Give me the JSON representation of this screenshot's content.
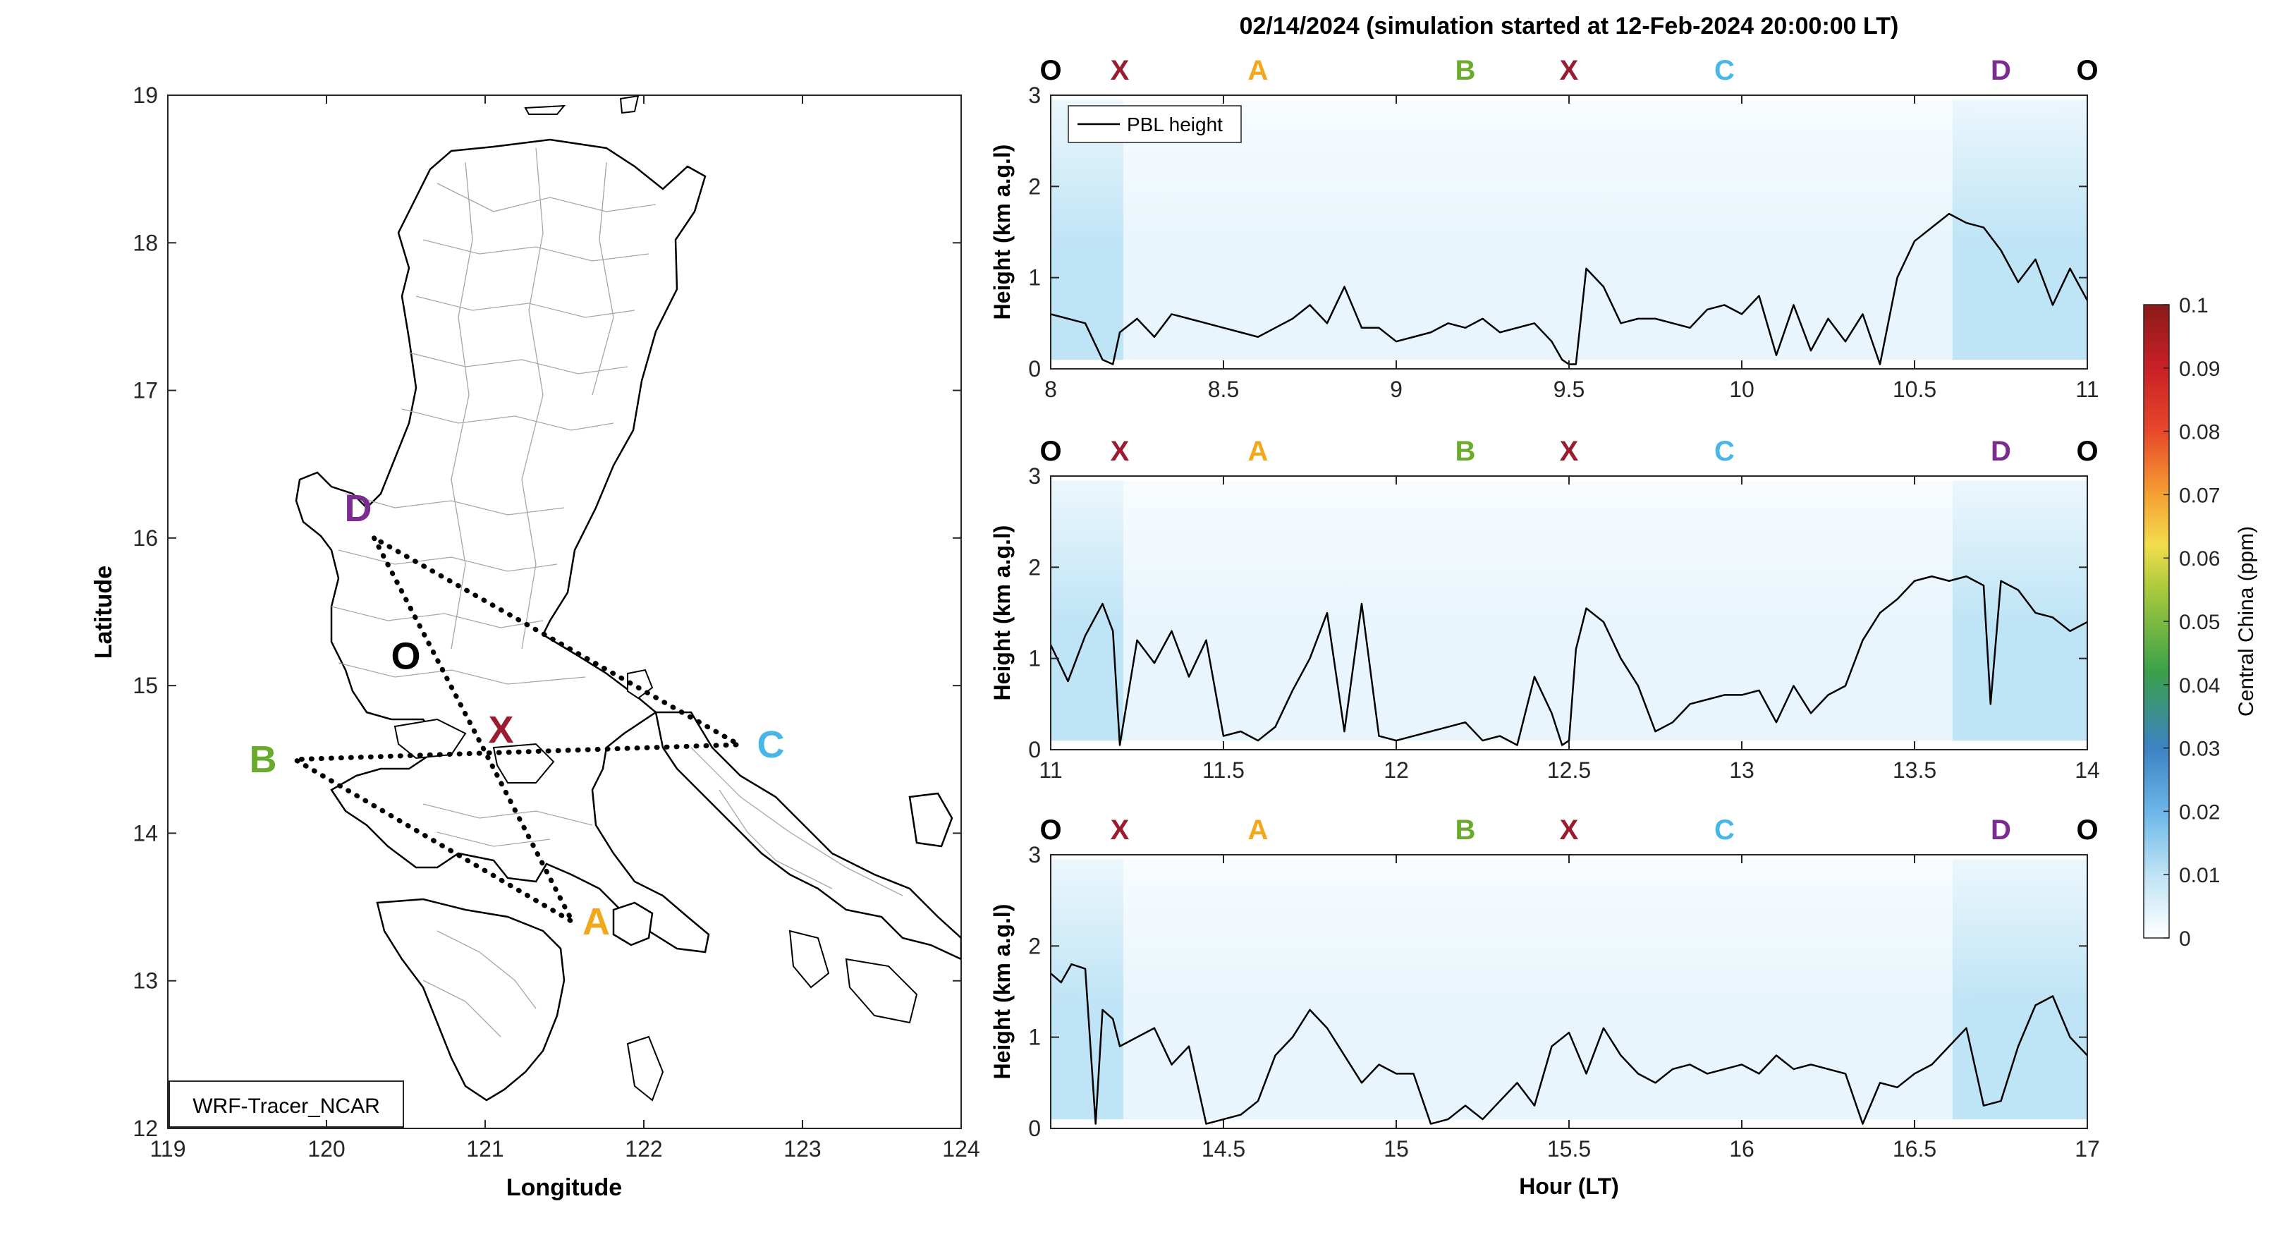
{
  "title": "02/14/2024 (simulation started at 12-Feb-2024 20:00:00 LT)",
  "colors": {
    "O": "#000000",
    "X": "#9b1b30",
    "A": "#f0a81c",
    "B": "#6aaa2c",
    "C": "#48b7e8",
    "D": "#7a2d8e",
    "pbl_line": "#000000",
    "tracer_light": "#e8f5fc",
    "tracer_mid": "#bfe4f6"
  },
  "chart_data": [
    {
      "type": "map",
      "xlabel": "Longitude",
      "ylabel": "Latitude",
      "xlim": [
        119,
        124
      ],
      "ylim": [
        12,
        19
      ],
      "xticks": [
        "119",
        "120",
        "121",
        "122",
        "123",
        "124"
      ],
      "yticks": [
        "12",
        "13",
        "14",
        "15",
        "16",
        "17",
        "18",
        "19"
      ],
      "label_box": "WRF-Tracer_NCAR",
      "points": [
        {
          "name": "D",
          "lon": 120.2,
          "lat": 16.2
        },
        {
          "name": "O",
          "lon": 120.5,
          "lat": 15.2
        },
        {
          "name": "X",
          "lon": 121.1,
          "lat": 14.7
        },
        {
          "name": "B",
          "lon": 119.6,
          "lat": 14.5
        },
        {
          "name": "C",
          "lon": 122.8,
          "lat": 14.6
        },
        {
          "name": "A",
          "lon": 121.7,
          "lat": 13.4
        }
      ],
      "route": [
        {
          "lon": 120.3,
          "lat": 16.0
        },
        {
          "lon": 121.0,
          "lat": 14.55
        },
        {
          "lon": 121.55,
          "lat": 13.4
        },
        {
          "lon": 119.8,
          "lat": 14.5
        },
        {
          "lon": 122.6,
          "lat": 14.6
        },
        {
          "lon": 120.3,
          "lat": 16.0
        }
      ]
    },
    {
      "type": "line",
      "ylabel": "Height (km a.g.l)",
      "xlim": [
        8,
        11
      ],
      "ylim": [
        0,
        3
      ],
      "xticks": [
        "8",
        "8.5",
        "9",
        "9.5",
        "10",
        "10.5",
        "11"
      ],
      "yticks": [
        "0",
        "1",
        "2",
        "3"
      ],
      "legend": "PBL height",
      "stops": [
        {
          "label": "O",
          "x": 8.0
        },
        {
          "label": "X",
          "x": 8.2
        },
        {
          "label": "A",
          "x": 8.6
        },
        {
          "label": "B",
          "x": 9.2
        },
        {
          "label": "X",
          "x": 9.5
        },
        {
          "label": "C",
          "x": 9.95
        },
        {
          "label": "D",
          "x": 10.75
        },
        {
          "label": "O",
          "x": 11.0
        }
      ],
      "series": [
        {
          "x": [
            8.0,
            8.05,
            8.1,
            8.15,
            8.18,
            8.2,
            8.25,
            8.3,
            8.35,
            8.4,
            8.45,
            8.5,
            8.55,
            8.6,
            8.65,
            8.7,
            8.75,
            8.8,
            8.85,
            8.9,
            8.95,
            9.0,
            9.05,
            9.1,
            9.15,
            9.2,
            9.25,
            9.3,
            9.35,
            9.4,
            9.45,
            9.48,
            9.5,
            9.52,
            9.55,
            9.6,
            9.65,
            9.7,
            9.75,
            9.8,
            9.85,
            9.9,
            9.95,
            10.0,
            10.05,
            10.1,
            10.15,
            10.2,
            10.25,
            10.3,
            10.35,
            10.4,
            10.45,
            10.5,
            10.55,
            10.6,
            10.65,
            10.7,
            10.75,
            10.8,
            10.85,
            10.9,
            10.95,
            11.0
          ],
          "y": [
            0.6,
            0.55,
            0.5,
            0.1,
            0.05,
            0.4,
            0.55,
            0.35,
            0.6,
            0.55,
            0.5,
            0.45,
            0.4,
            0.35,
            0.45,
            0.55,
            0.7,
            0.5,
            0.9,
            0.45,
            0.45,
            0.3,
            0.35,
            0.4,
            0.5,
            0.45,
            0.55,
            0.4,
            0.45,
            0.5,
            0.3,
            0.1,
            0.05,
            0.05,
            1.1,
            0.9,
            0.5,
            0.55,
            0.55,
            0.5,
            0.45,
            0.65,
            0.7,
            0.6,
            0.8,
            0.15,
            0.7,
            0.2,
            0.55,
            0.3,
            0.6,
            0.05,
            1.0,
            1.4,
            1.55,
            1.7,
            1.6,
            1.55,
            1.3,
            0.95,
            1.2,
            0.7,
            1.1,
            0.75
          ]
        }
      ]
    },
    {
      "type": "line",
      "ylabel": "Height (km a.g.l)",
      "xlim": [
        11,
        14
      ],
      "ylim": [
        0,
        3
      ],
      "xticks": [
        "11",
        "11.5",
        "12",
        "12.5",
        "13",
        "13.5",
        "14"
      ],
      "yticks": [
        "0",
        "1",
        "2",
        "3"
      ],
      "stops": [
        {
          "label": "O",
          "x": 11.0
        },
        {
          "label": "X",
          "x": 11.2
        },
        {
          "label": "A",
          "x": 11.6
        },
        {
          "label": "B",
          "x": 12.2
        },
        {
          "label": "X",
          "x": 12.5
        },
        {
          "label": "C",
          "x": 12.95
        },
        {
          "label": "D",
          "x": 13.75
        },
        {
          "label": "O",
          "x": 14.0
        }
      ],
      "series": [
        {
          "x": [
            11.0,
            11.05,
            11.1,
            11.15,
            11.18,
            11.2,
            11.25,
            11.3,
            11.35,
            11.4,
            11.45,
            11.5,
            11.55,
            11.6,
            11.65,
            11.7,
            11.75,
            11.8,
            11.85,
            11.9,
            11.95,
            12.0,
            12.05,
            12.1,
            12.15,
            12.2,
            12.25,
            12.3,
            12.35,
            12.4,
            12.45,
            12.48,
            12.5,
            12.52,
            12.55,
            12.6,
            12.65,
            12.7,
            12.75,
            12.8,
            12.85,
            12.9,
            12.95,
            13.0,
            13.05,
            13.1,
            13.15,
            13.2,
            13.25,
            13.3,
            13.35,
            13.4,
            13.45,
            13.5,
            13.55,
            13.6,
            13.65,
            13.7,
            13.72,
            13.75,
            13.8,
            13.85,
            13.9,
            13.95,
            14.0
          ],
          "y": [
            1.15,
            0.75,
            1.25,
            1.6,
            1.3,
            0.05,
            1.2,
            0.95,
            1.3,
            0.8,
            1.2,
            0.15,
            0.2,
            0.1,
            0.25,
            0.65,
            1.0,
            1.5,
            0.2,
            1.6,
            0.15,
            0.1,
            0.15,
            0.2,
            0.25,
            0.3,
            0.1,
            0.15,
            0.05,
            0.8,
            0.4,
            0.05,
            0.1,
            1.1,
            1.55,
            1.4,
            1.0,
            0.7,
            0.2,
            0.3,
            0.5,
            0.55,
            0.6,
            0.6,
            0.65,
            0.3,
            0.7,
            0.4,
            0.6,
            0.7,
            1.2,
            1.5,
            1.65,
            1.85,
            1.9,
            1.85,
            1.9,
            1.8,
            0.5,
            1.85,
            1.75,
            1.5,
            1.45,
            1.3,
            1.4
          ]
        }
      ]
    },
    {
      "type": "line",
      "ylabel": "Height (km a.g.l)",
      "xlabel": "Hour (LT)",
      "xlim": [
        14,
        17
      ],
      "ylim": [
        0,
        3
      ],
      "xticks": [
        "14.5",
        "15",
        "15.5",
        "16",
        "16.5",
        "17"
      ],
      "yticks": [
        "0",
        "1",
        "2",
        "3"
      ],
      "stops": [
        {
          "label": "O",
          "x": 14.0
        },
        {
          "label": "X",
          "x": 14.2
        },
        {
          "label": "A",
          "x": 14.6
        },
        {
          "label": "B",
          "x": 15.2
        },
        {
          "label": "X",
          "x": 15.5
        },
        {
          "label": "C",
          "x": 15.95
        },
        {
          "label": "D",
          "x": 16.75
        },
        {
          "label": "O",
          "x": 17.0
        }
      ],
      "series": [
        {
          "x": [
            14.0,
            14.03,
            14.06,
            14.1,
            14.13,
            14.15,
            14.18,
            14.2,
            14.25,
            14.3,
            14.35,
            14.4,
            14.45,
            14.5,
            14.55,
            14.6,
            14.65,
            14.7,
            14.75,
            14.8,
            14.85,
            14.9,
            14.95,
            15.0,
            15.05,
            15.1,
            15.15,
            15.2,
            15.25,
            15.3,
            15.35,
            15.4,
            15.45,
            15.5,
            15.55,
            15.6,
            15.65,
            15.7,
            15.75,
            15.8,
            15.85,
            15.9,
            15.95,
            16.0,
            16.05,
            16.1,
            16.15,
            16.2,
            16.25,
            16.3,
            16.35,
            16.4,
            16.45,
            16.5,
            16.55,
            16.6,
            16.65,
            16.7,
            16.75,
            16.8,
            16.85,
            16.9,
            16.95,
            17.0
          ],
          "y": [
            1.7,
            1.6,
            1.8,
            1.75,
            0.05,
            1.3,
            1.2,
            0.9,
            1.0,
            1.1,
            0.7,
            0.9,
            0.05,
            0.1,
            0.15,
            0.3,
            0.8,
            1.0,
            1.3,
            1.1,
            0.8,
            0.5,
            0.7,
            0.6,
            0.6,
            0.05,
            0.1,
            0.25,
            0.1,
            0.3,
            0.5,
            0.25,
            0.9,
            1.05,
            0.6,
            1.1,
            0.8,
            0.6,
            0.5,
            0.65,
            0.7,
            0.6,
            0.65,
            0.7,
            0.6,
            0.8,
            0.65,
            0.7,
            0.65,
            0.6,
            0.05,
            0.5,
            0.45,
            0.6,
            0.7,
            0.9,
            1.1,
            0.25,
            0.3,
            0.9,
            1.35,
            1.45,
            1.0,
            0.8
          ]
        }
      ]
    }
  ],
  "colorbar": {
    "label": "Central China (ppm)",
    "ticks": [
      "0",
      "0.01",
      "0.02",
      "0.03",
      "0.04",
      "0.05",
      "0.06",
      "0.07",
      "0.08",
      "0.09",
      "0.1"
    ]
  }
}
